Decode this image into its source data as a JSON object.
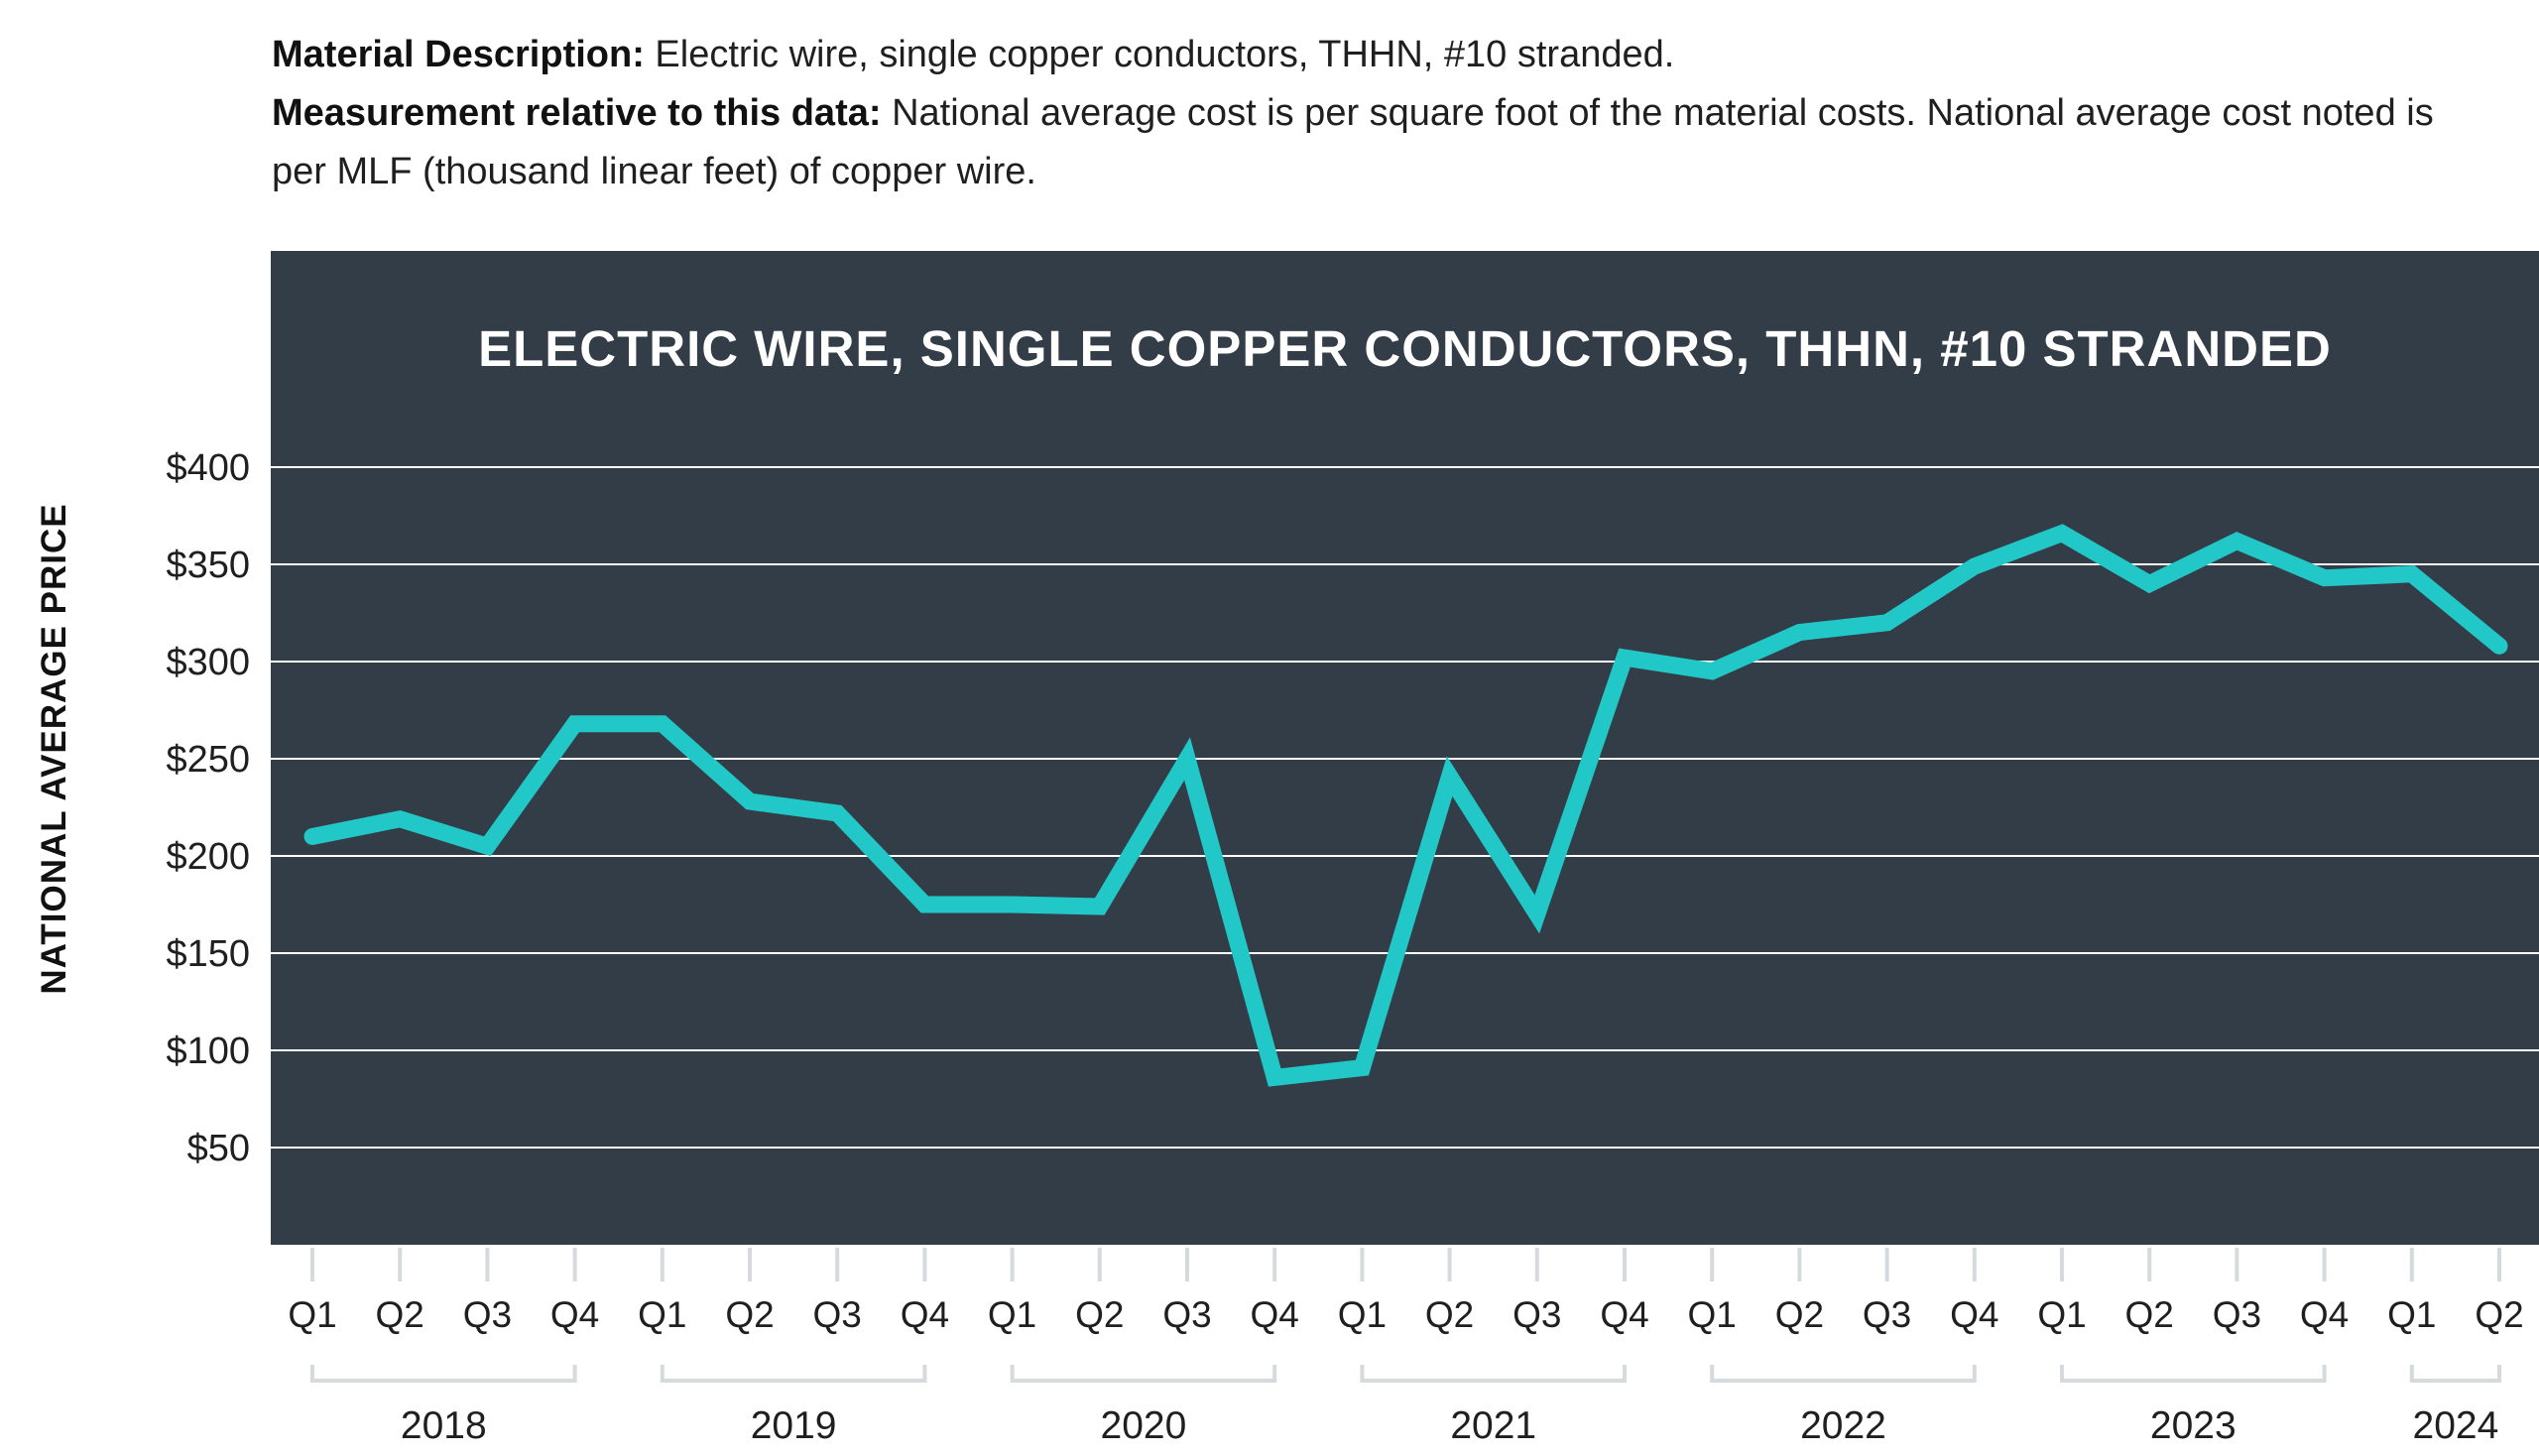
{
  "description": {
    "line1_label": "Material Description:",
    "line1_text": " Electric wire, single copper conductors, THHN, #10 stranded.",
    "line2_label": "Measurement relative to this data:",
    "line2_text": " National average cost is per square foot of the material costs. National average cost noted is per MLF (thousand linear feet) of copper wire."
  },
  "chart_data": {
    "type": "line",
    "title": "ELECTRIC WIRE, SINGLE COPPER CONDUCTORS, THHN, #10 STRANDED",
    "ylabel": "NATIONAL AVERAGE PRICE",
    "xlabel": "",
    "categories": [
      "Q1",
      "Q2",
      "Q3",
      "Q4",
      "Q1",
      "Q2",
      "Q3",
      "Q4",
      "Q1",
      "Q2",
      "Q3",
      "Q4",
      "Q1",
      "Q2",
      "Q3",
      "Q4",
      "Q1",
      "Q2",
      "Q3",
      "Q4",
      "Q1",
      "Q2",
      "Q3",
      "Q4",
      "Q1",
      "Q2"
    ],
    "years": [
      {
        "label": "2018",
        "start": 0,
        "end": 3
      },
      {
        "label": "2019",
        "start": 4,
        "end": 7
      },
      {
        "label": "2020",
        "start": 8,
        "end": 11
      },
      {
        "label": "2021",
        "start": 12,
        "end": 15
      },
      {
        "label": "2022",
        "start": 16,
        "end": 19
      },
      {
        "label": "2023",
        "start": 20,
        "end": 23
      },
      {
        "label": "2024",
        "start": 24,
        "end": 25
      }
    ],
    "series": [
      {
        "values": [
          210,
          219,
          205,
          268,
          268,
          228,
          222,
          175,
          175,
          174,
          250,
          86,
          91,
          241,
          170,
          302,
          295,
          315,
          320,
          349,
          366,
          340,
          362,
          343,
          345,
          308
        ]
      }
    ],
    "yticks": [
      "$50",
      "$100",
      "$150",
      "$200",
      "$250",
      "$300",
      "$350",
      "$400"
    ],
    "ytick_values": [
      50,
      100,
      150,
      200,
      250,
      300,
      350,
      400
    ],
    "ylim": [
      0,
      400
    ],
    "grid": true,
    "colors": {
      "line": "#22c8c8",
      "panel": "#333d47",
      "grid": "#ffffff",
      "bracket": "#d5dade"
    }
  }
}
